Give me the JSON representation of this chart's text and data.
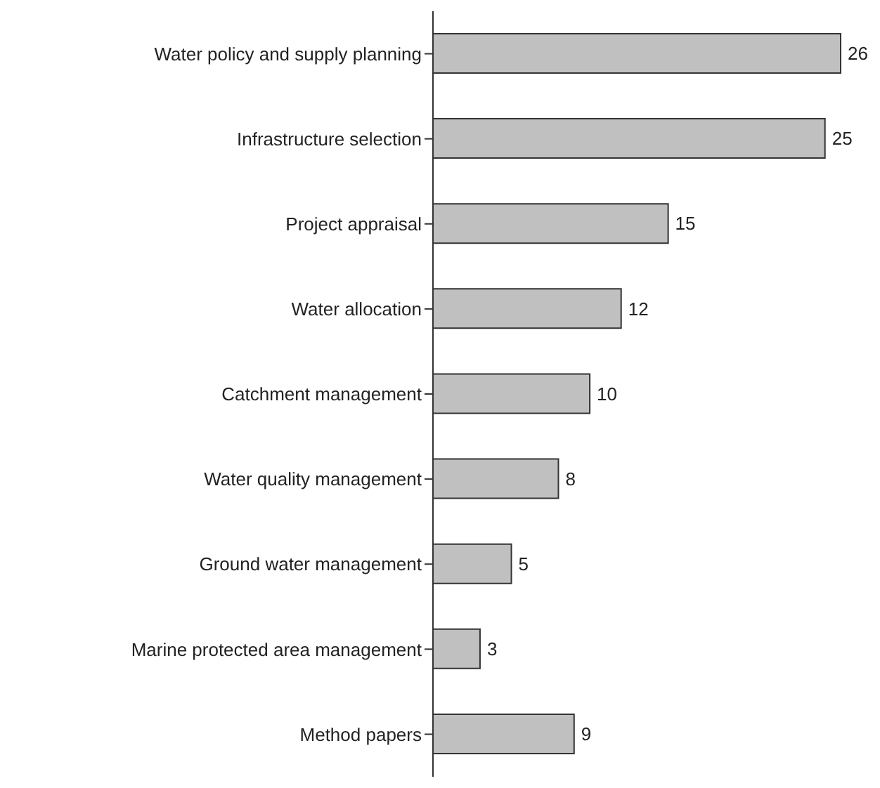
{
  "chart_data": {
    "type": "bar",
    "orientation": "horizontal",
    "categories": [
      "Water policy and supply planning",
      "Infrastructure selection",
      "Project appraisal",
      "Water allocation",
      "Catchment management",
      "Water quality management",
      "Ground water management",
      "Marine protected area management",
      "Method papers"
    ],
    "values": [
      26,
      25,
      15,
      12,
      10,
      8,
      5,
      3,
      9
    ],
    "color": "#c0c0c0",
    "data_labels": true,
    "grid": false,
    "legend": false
  }
}
